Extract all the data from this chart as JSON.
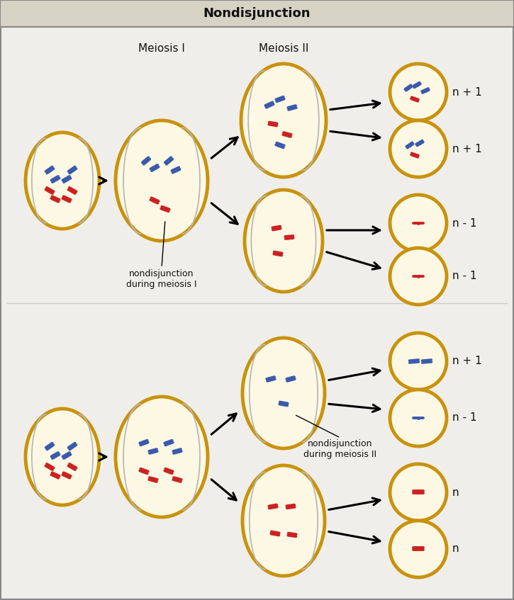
{
  "title": "Nondisjunction",
  "title_bg": "#d6d3c4",
  "main_bg": "#f0eeea",
  "cell_fill": "#fdf8e4",
  "cell_edge": "#c8920c",
  "cell_edge_width": 3.5,
  "spindle_color": "#b8b8b8",
  "blue_chr": "#3a5aad",
  "red_chr": "#cc2222",
  "text_color": "#111111",
  "label_meiosis1": "Meiosis I",
  "label_meiosis2": "Meiosis II",
  "label_nondisjunction1": "nondisjunction\nduring meiosis I",
  "label_nondisjunction2": "nondisjunction\nduring meiosis II",
  "results_top": [
    "n + 1",
    "n + 1",
    "n - 1",
    "n - 1"
  ],
  "results_bottom": [
    "n + 1",
    "n - 1",
    "n",
    "n"
  ]
}
